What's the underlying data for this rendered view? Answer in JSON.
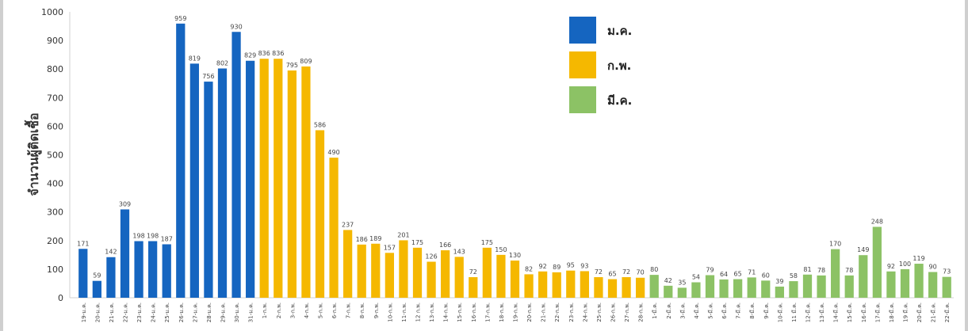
{
  "chart_data": {
    "type": "bar",
    "ylabel": "จำนวนผู้ติดเชื้อ",
    "ylim": [
      0,
      1000
    ],
    "yticks": [
      "0",
      "100",
      "200",
      "300",
      "400",
      "500",
      "600",
      "700",
      "800",
      "900",
      "1000"
    ],
    "grid": false,
    "legend_position": "top-right",
    "legend": [
      {
        "name": "ม.ค.",
        "color": "#1565c0"
      },
      {
        "name": "ก.พ.",
        "color": "#f5b800"
      },
      {
        "name": "มี.ค.",
        "color": "#8cc265"
      }
    ],
    "categories": [
      "19-ม.ค.",
      "20-ม.ค.",
      "21-ม.ค.",
      "22-ม.ค.",
      "23-ม.ค.",
      "24-ม.ค.",
      "25-ม.ค.",
      "26-ม.ค.",
      "27-ม.ค.",
      "28-ม.ค.",
      "29-ม.ค.",
      "30-ม.ค.",
      "31-ม.ค.",
      "1-ก.พ.",
      "2-ก.พ.",
      "3-ก.พ.",
      "4-ก.พ.",
      "5-ก.พ.",
      "6-ก.พ.",
      "7-ก.พ.",
      "8-ก.พ.",
      "9-ก.พ.",
      "10-ก.พ.",
      "11-ก.พ.",
      "12 ก.พ.",
      "13-ก.พ.",
      "14-ก.พ.",
      "15-ก.พ.",
      "16-ก.พ.",
      "17-ก.พ.",
      "18-ก.พ.",
      "19-ก.พ.",
      "20-ก.พ.",
      "21-ก.พ.",
      "22-ก.พ.",
      "23-ก.พ.",
      "24-ก.พ.",
      "25-ก.พ.",
      "26-ก.พ.",
      "27-ก.พ.",
      "28-ก.พ.",
      "1-มี.ค.",
      "2-มี.ค.",
      "3-มี.ค.",
      "4-มี.ค.",
      "5-มี.ค.",
      "6-มี.ค.",
      "7-มี.ค.",
      "8-มี.ค.",
      "9-มี.ค.",
      "10-มี.ค.",
      "11 มี.ค.",
      "12-มี.ค.",
      "13-มี.ค.",
      "14-มี.ค.",
      "15-มี.ค.",
      "16-มี.ค.",
      "17-มี.ค.",
      "18-มี.ค.",
      "19 มี.ค.",
      "20-มี.ค.",
      "21-มี.ค.",
      "22-มี.ค."
    ],
    "values": [
      171,
      59,
      142,
      309,
      198,
      198,
      187,
      959,
      819,
      756,
      802,
      930,
      829,
      836,
      836,
      795,
      809,
      586,
      490,
      237,
      186,
      189,
      157,
      201,
      175,
      126,
      166,
      143,
      72,
      175,
      150,
      130,
      82,
      92,
      89,
      95,
      93,
      72,
      65,
      72,
      70,
      80,
      42,
      35,
      54,
      79,
      64,
      65,
      71,
      60,
      39,
      58,
      81,
      78,
      170,
      78,
      149,
      248,
      92,
      100,
      119,
      90,
      73
    ],
    "months": [
      0,
      0,
      0,
      0,
      0,
      0,
      0,
      0,
      0,
      0,
      0,
      0,
      0,
      1,
      1,
      1,
      1,
      1,
      1,
      1,
      1,
      1,
      1,
      1,
      1,
      1,
      1,
      1,
      1,
      1,
      1,
      1,
      1,
      1,
      1,
      1,
      1,
      1,
      1,
      1,
      1,
      2,
      2,
      2,
      2,
      2,
      2,
      2,
      2,
      2,
      2,
      2,
      2,
      2,
      2,
      2,
      2,
      2,
      2,
      2,
      2,
      2,
      2
    ]
  }
}
